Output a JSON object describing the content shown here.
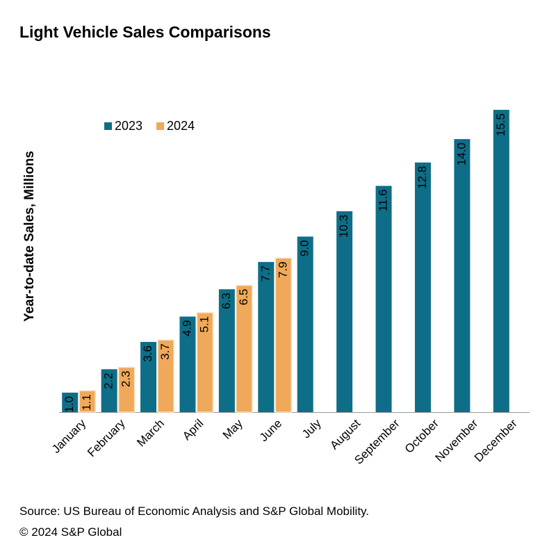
{
  "chart_data": {
    "type": "bar",
    "title": "Light Vehicle Sales Comparisons",
    "y_label": "Year-to-date Sales, Millions",
    "categories": [
      "January",
      "February",
      "March",
      "April",
      "May",
      "June",
      "July",
      "August",
      "September",
      "October",
      "November",
      "December"
    ],
    "series": [
      {
        "name": "2023",
        "color": "#0f6e87",
        "values": [
          1.0,
          2.2,
          3.6,
          4.9,
          6.3,
          7.7,
          9.0,
          10.3,
          11.6,
          12.8,
          14.0,
          15.5
        ],
        "value_labels": [
          "1.0",
          "2.2",
          "3.6",
          "4.9",
          "6.3",
          "7.7",
          "9.0",
          "10.3",
          "11.6",
          "12.8",
          "14.0",
          "15.5"
        ]
      },
      {
        "name": "2024",
        "color": "#f0a95a",
        "values": [
          1.1,
          2.3,
          3.7,
          5.1,
          6.5,
          7.9,
          null,
          null,
          null,
          null,
          null,
          null
        ],
        "value_labels": [
          "1.1",
          "2.3",
          "3.7",
          "5.1",
          "6.5",
          "7.9",
          null,
          null,
          null,
          null,
          null,
          null
        ]
      }
    ],
    "ylim": [
      0,
      16
    ],
    "legend": "top-left",
    "source": "Source: US Bureau of Economic Analysis and S&P Global Mobility.",
    "copyright": "© 2024 S&P Global"
  }
}
